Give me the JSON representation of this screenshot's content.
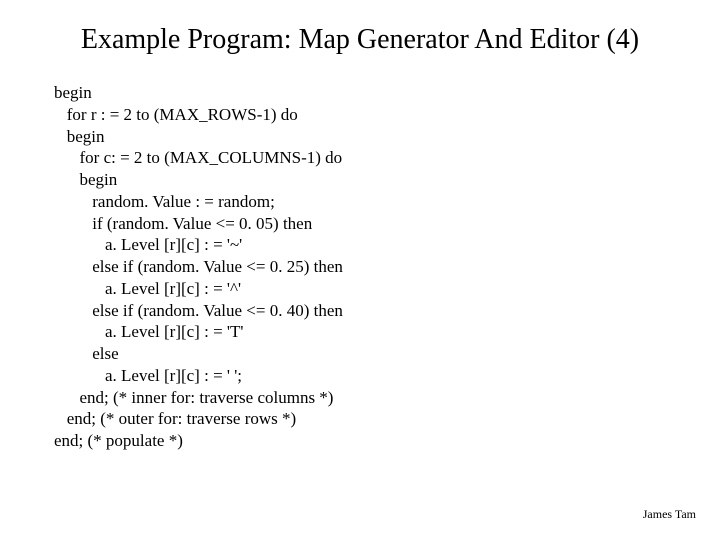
{
  "title": "Example Program: Map Generator And Editor (4)",
  "code": {
    "l01": "begin",
    "l02": "   for r : = 2 to (MAX_ROWS-1) do",
    "l03": "   begin",
    "l04": "      for c: = 2 to (MAX_COLUMNS-1) do",
    "l05": "      begin",
    "l06": "         random. Value : = random;",
    "l07": "         if (random. Value <= 0. 05) then",
    "l08": "            a. Level [r][c] : = '~'",
    "l09": "         else if (random. Value <= 0. 25) then",
    "l10": "            a. Level [r][c] : = '^'",
    "l11": "         else if (random. Value <= 0. 40) then",
    "l12": "            a. Level [r][c] : = 'T'",
    "l13": "         else",
    "l14": "            a. Level [r][c] : = ' ';",
    "l15": "      end; (* inner for: traverse columns *)",
    "l16": "   end; (* outer for: traverse rows *)",
    "l17": "end; (* populate *)"
  },
  "footer": "James Tam",
  "style": {
    "background_color": "#ffffff",
    "text_color": "#000000",
    "title_fontsize": 28,
    "code_fontsize": 17,
    "footer_fontsize": 12,
    "font_family": "Times New Roman"
  }
}
